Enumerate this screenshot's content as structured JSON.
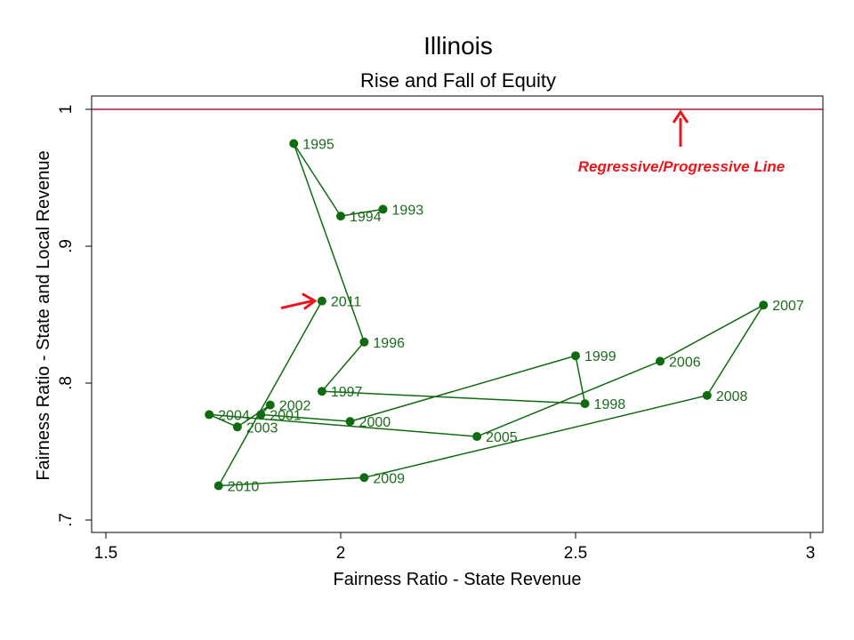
{
  "chart_data": {
    "type": "line",
    "title": "Illinois",
    "subtitle": "Rise and Fall of Equity",
    "xlabel": "Fairness Ratio - State Revenue",
    "ylabel": "Fairness Ratio - State and Local Revenue",
    "xlim": [
      1.47,
      3.03
    ],
    "ylim": [
      0.69,
      1.0
    ],
    "xticks": [
      1.5,
      2,
      2.5,
      3
    ],
    "xtick_labels": [
      "1.5",
      "2",
      "2.5",
      "3"
    ],
    "yticks": [
      0.7,
      0.8,
      0.9,
      1.0
    ],
    "ytick_labels": [
      ".7",
      ".8",
      ".9",
      "1"
    ],
    "grid": false,
    "series": [
      {
        "name": "Illinois",
        "color": "#0f6b0f",
        "points": [
          {
            "label": "1993",
            "x": 2.09,
            "y": 0.927
          },
          {
            "label": "1994",
            "x": 2.0,
            "y": 0.922
          },
          {
            "label": "1995",
            "x": 1.9,
            "y": 0.975
          },
          {
            "label": "1996",
            "x": 2.05,
            "y": 0.83
          },
          {
            "label": "1997",
            "x": 1.96,
            "y": 0.794
          },
          {
            "label": "1998",
            "x": 2.52,
            "y": 0.785
          },
          {
            "label": "1999",
            "x": 2.5,
            "y": 0.82
          },
          {
            "label": "2000",
            "x": 2.02,
            "y": 0.772
          },
          {
            "label": "2001",
            "x": 1.83,
            "y": 0.777
          },
          {
            "label": "2002",
            "x": 1.85,
            "y": 0.784
          },
          {
            "label": "2003",
            "x": 1.78,
            "y": 0.768
          },
          {
            "label": "2004",
            "x": 1.72,
            "y": 0.777
          },
          {
            "label": "2005",
            "x": 2.29,
            "y": 0.761
          },
          {
            "label": "2006",
            "x": 2.68,
            "y": 0.816
          },
          {
            "label": "2007",
            "x": 2.9,
            "y": 0.857
          },
          {
            "label": "2008",
            "x": 2.78,
            "y": 0.791
          },
          {
            "label": "2009",
            "x": 2.05,
            "y": 0.731
          },
          {
            "label": "2010",
            "x": 1.74,
            "y": 0.725
          },
          {
            "label": "2011",
            "x": 1.96,
            "y": 0.86
          }
        ]
      }
    ],
    "reference_line": {
      "y": 1.0,
      "label": "Regressive/Progressive Line",
      "color": "#a8193a",
      "label_color": "#e8161b"
    },
    "highlight": {
      "label": "2011",
      "arrow_color": "#e8161b"
    }
  }
}
